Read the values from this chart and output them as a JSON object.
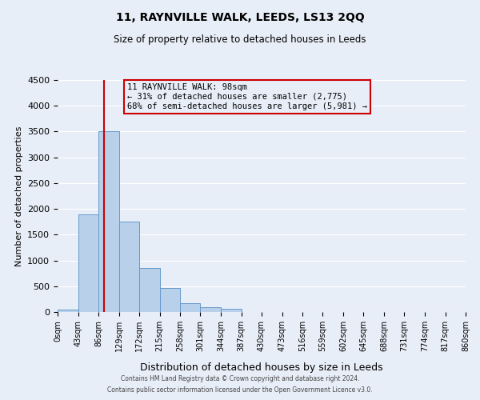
{
  "title": "11, RAYNVILLE WALK, LEEDS, LS13 2QQ",
  "subtitle": "Size of property relative to detached houses in Leeds",
  "xlabel": "Distribution of detached houses by size in Leeds",
  "ylabel": "Number of detached properties",
  "bar_color": "#b8d0ea",
  "bar_edge_color": "#6699cc",
  "bins": [
    0,
    43,
    86,
    129,
    172,
    215,
    258,
    301,
    344,
    387,
    430,
    473,
    516,
    559,
    602,
    645,
    688,
    731,
    774,
    817,
    860
  ],
  "bin_labels": [
    "0sqm",
    "43sqm",
    "86sqm",
    "129sqm",
    "172sqm",
    "215sqm",
    "258sqm",
    "301sqm",
    "344sqm",
    "387sqm",
    "430sqm",
    "473sqm",
    "516sqm",
    "559sqm",
    "602sqm",
    "645sqm",
    "688sqm",
    "731sqm",
    "774sqm",
    "817sqm",
    "860sqm"
  ],
  "counts": [
    40,
    1900,
    3500,
    1750,
    860,
    460,
    175,
    90,
    55,
    0,
    0,
    0,
    0,
    0,
    0,
    0,
    0,
    0,
    0,
    0
  ],
  "property_size": 98,
  "vline_color": "#cc0000",
  "box_text_line1": "11 RAYNVILLE WALK: 98sqm",
  "box_text_line2": "← 31% of detached houses are smaller (2,775)",
  "box_text_line3": "68% of semi-detached houses are larger (5,981) →",
  "box_edge_color": "#cc0000",
  "ylim": [
    0,
    4500
  ],
  "yticks": [
    0,
    500,
    1000,
    1500,
    2000,
    2500,
    3000,
    3500,
    4000,
    4500
  ],
  "footer_line1": "Contains HM Land Registry data © Crown copyright and database right 2024.",
  "footer_line2": "Contains public sector information licensed under the Open Government Licence v3.0.",
  "background_color": "#e8eef8",
  "grid_color": "#ffffff"
}
